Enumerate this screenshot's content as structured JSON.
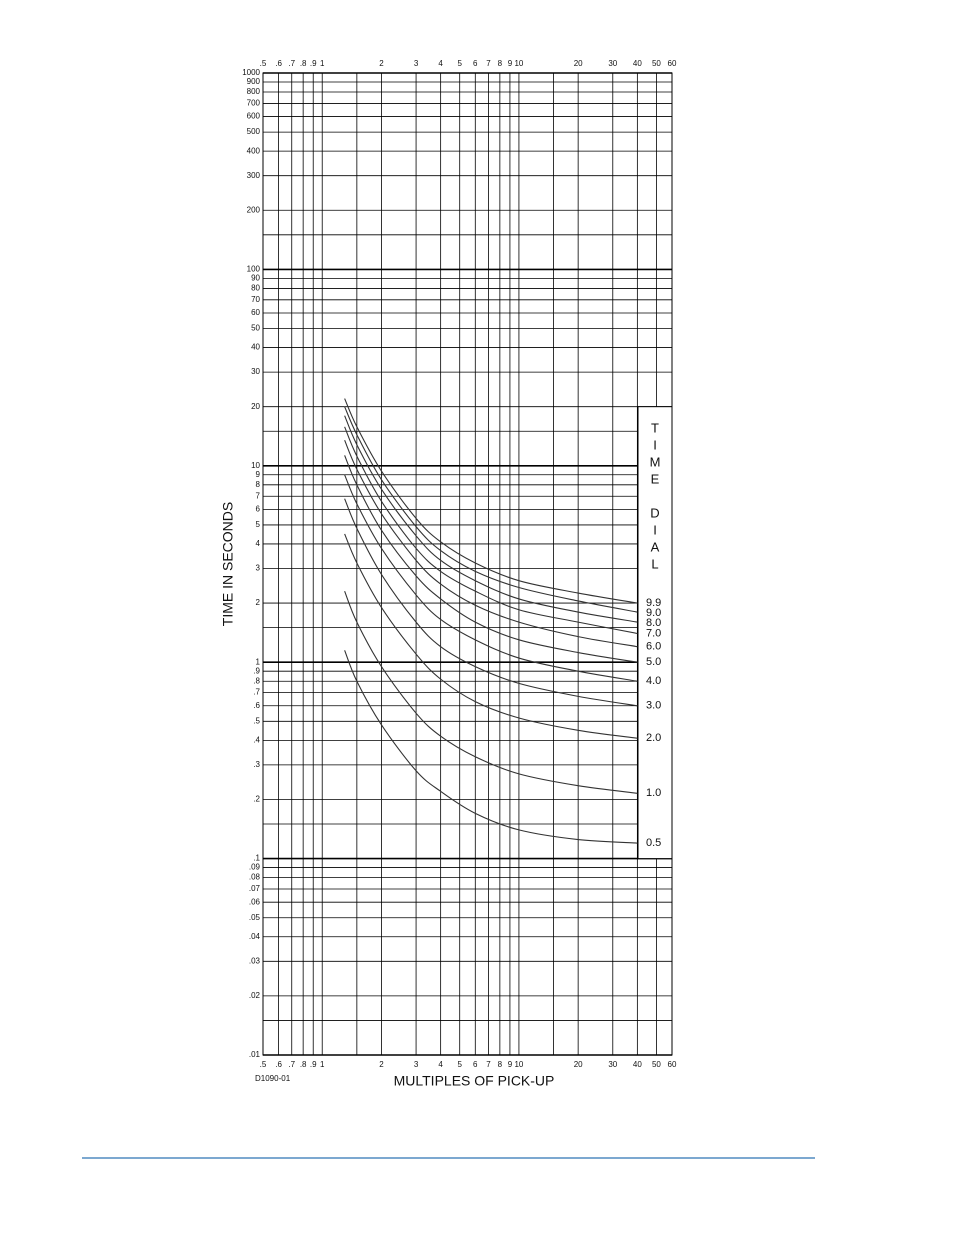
{
  "chart_data": {
    "type": "line",
    "log_x": true,
    "log_y": true,
    "grid": true,
    "color": "#333333",
    "ylabel": "TIME IN SECONDS",
    "xlabel": "MULTIPLES OF PICK-UP",
    "figure_id": "D1090-01",
    "legend_title": "TIME DIAL",
    "legend_position": "right",
    "xlim": [
      0.5,
      60
    ],
    "ylim": [
      0.01,
      1000
    ],
    "xticks": [
      {
        "value": 0.5,
        "label": ".5"
      },
      {
        "value": 0.6,
        "label": ".6"
      },
      {
        "value": 0.7,
        "label": ".7"
      },
      {
        "value": 0.8,
        "label": ".8"
      },
      {
        "value": 0.9,
        "label": ".9"
      },
      1,
      2,
      3,
      4,
      5,
      6,
      7,
      8,
      9,
      10,
      20,
      30,
      40,
      50,
      60
    ],
    "xminor": [
      1.5,
      15
    ],
    "yticks": [
      1000,
      900,
      800,
      700,
      600,
      500,
      400,
      300,
      200,
      100,
      90,
      80,
      70,
      60,
      50,
      40,
      30,
      20,
      10,
      9,
      8,
      7,
      6,
      5,
      4,
      3,
      2,
      1,
      {
        "value": 0.9,
        "label": ".9"
      },
      {
        "value": 0.8,
        "label": ".8"
      },
      {
        "value": 0.7,
        "label": ".7"
      },
      {
        "value": 0.6,
        "label": ".6"
      },
      {
        "value": 0.5,
        "label": ".5"
      },
      {
        "value": 0.4,
        "label": ".4"
      },
      {
        "value": 0.3,
        "label": ".3"
      },
      {
        "value": 0.2,
        "label": ".2"
      },
      {
        "value": 0.1,
        "label": ".1"
      },
      {
        "value": 0.09,
        "label": ".09"
      },
      {
        "value": 0.08,
        "label": ".08"
      },
      {
        "value": 0.07,
        "label": ".07"
      },
      {
        "value": 0.06,
        "label": ".06"
      },
      {
        "value": 0.05,
        "label": ".05"
      },
      {
        "value": 0.04,
        "label": ".04"
      },
      {
        "value": 0.03,
        "label": ".03"
      },
      {
        "value": 0.02,
        "label": ".02"
      },
      {
        "value": 0.01,
        "label": ".01"
      }
    ],
    "yminor": [
      150,
      15,
      1.5,
      0.15,
      0.015
    ],
    "x": [
      1.3,
      1.5,
      2,
      3,
      4,
      6,
      10,
      20,
      40
    ],
    "series": [
      {
        "name": "9.9",
        "values": [
          22,
          15.8,
          9.4,
          5.4,
          4.1,
          3.2,
          2.6,
          2.25,
          2.0
        ]
      },
      {
        "name": "9.0",
        "values": [
          20,
          14.4,
          8.5,
          4.9,
          3.7,
          2.9,
          2.4,
          2.05,
          1.8
        ]
      },
      {
        "name": "8.0",
        "values": [
          18,
          12.8,
          7.6,
          4.4,
          3.3,
          2.6,
          2.1,
          1.8,
          1.6
        ]
      },
      {
        "name": "7.0",
        "values": [
          15.8,
          11.2,
          6.6,
          3.8,
          2.9,
          2.3,
          1.85,
          1.6,
          1.4
        ]
      },
      {
        "name": "6.0",
        "values": [
          13.5,
          9.6,
          5.7,
          3.3,
          2.5,
          1.95,
          1.6,
          1.35,
          1.2
        ]
      },
      {
        "name": "5.0",
        "values": [
          11.3,
          8,
          4.7,
          2.75,
          2.1,
          1.6,
          1.3,
          1.12,
          1.0
        ]
      },
      {
        "name": "4.0",
        "values": [
          9,
          6.4,
          3.8,
          2.2,
          1.65,
          1.3,
          1.05,
          0.9,
          0.8
        ]
      },
      {
        "name": "3.0",
        "values": [
          6.8,
          4.8,
          2.8,
          1.6,
          1.2,
          0.95,
          0.78,
          0.67,
          0.6
        ]
      },
      {
        "name": "2.0",
        "values": [
          4.5,
          3.2,
          1.9,
          1.1,
          0.82,
          0.63,
          0.52,
          0.45,
          0.41
        ]
      },
      {
        "name": "1.0",
        "values": [
          2.3,
          1.6,
          0.95,
          0.55,
          0.42,
          0.33,
          0.27,
          0.235,
          0.215
        ]
      },
      {
        "name": "0.5",
        "values": [
          1.15,
          0.8,
          0.48,
          0.28,
          0.22,
          0.17,
          0.14,
          0.125,
          0.12
        ]
      }
    ]
  }
}
